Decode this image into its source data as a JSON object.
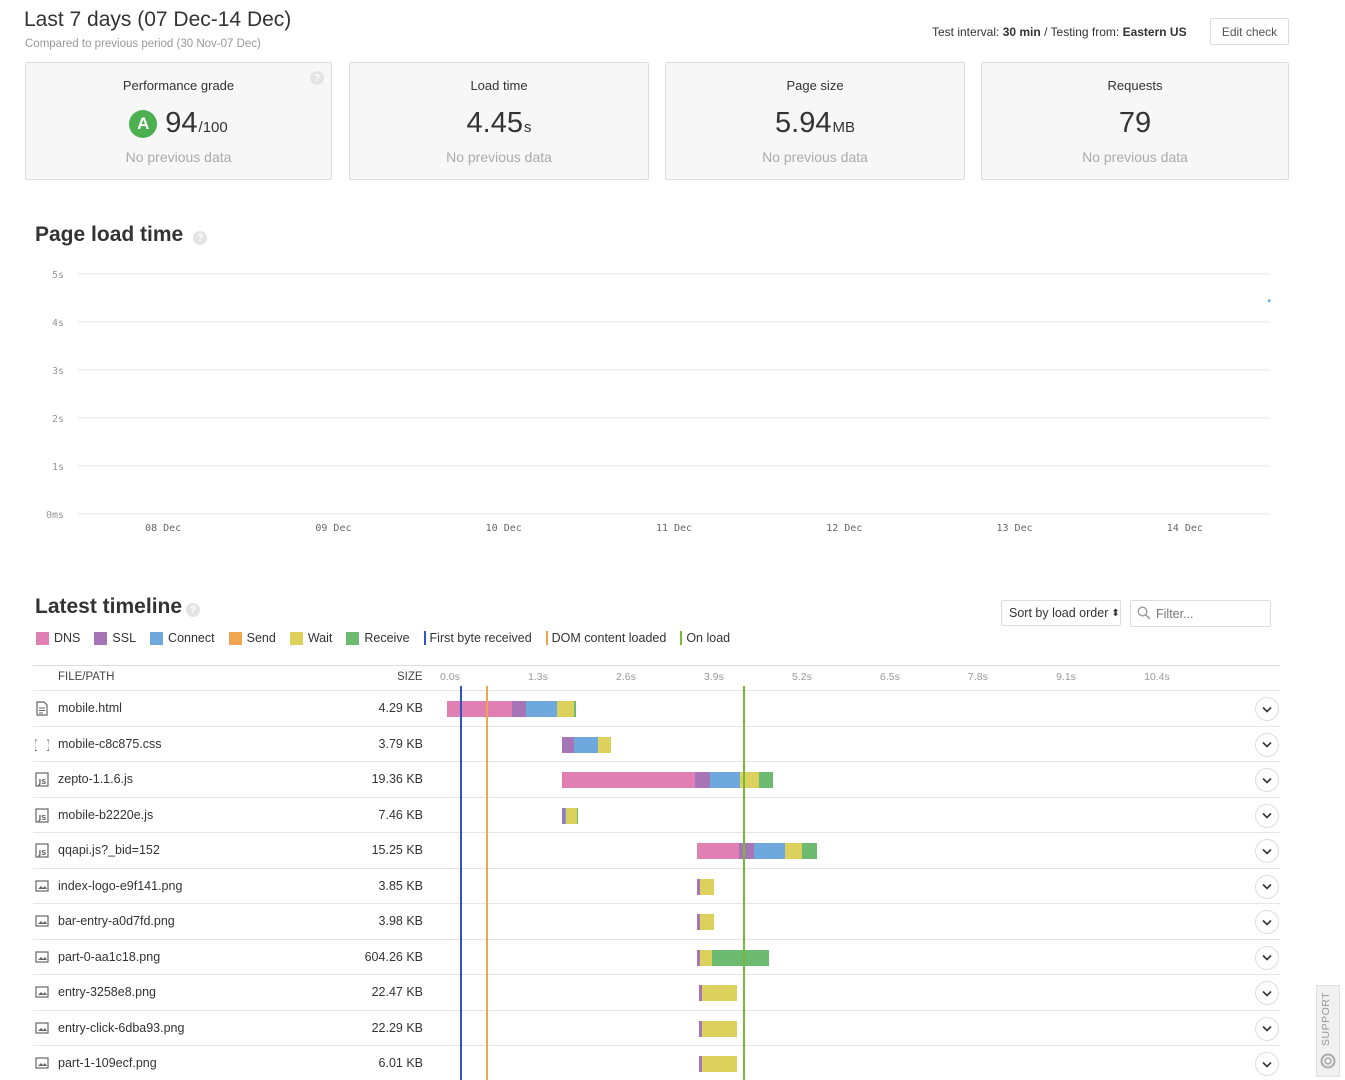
{
  "header": {
    "title": "Last 7 days (07 Dec-14 Dec)",
    "subtitle": "Compared to previous period (30 Nov-07 Dec)",
    "interval_label": "Test interval:",
    "interval_value": "30 min",
    "separator": "/",
    "testing_label": "Testing from:",
    "testing_value": "Eastern US",
    "edit_button": "Edit check"
  },
  "cards": [
    {
      "label": "Performance grade",
      "grade": "A",
      "value": "94",
      "unit": "/100",
      "foot": "No previous data"
    },
    {
      "label": "Load time",
      "value": "4.45",
      "unit": "s",
      "foot": "No previous data"
    },
    {
      "label": "Page size",
      "value": "5.94",
      "unit": "MB",
      "foot": "No previous data"
    },
    {
      "label": "Requests",
      "value": "79",
      "unit": "",
      "foot": "No previous data"
    }
  ],
  "help_glyph": "?",
  "load_section": {
    "title": "Page load time",
    "chart_data": {
      "type": "scatter",
      "title": "Page load time",
      "y_ticks": [
        "5s",
        "4s",
        "3s",
        "2s",
        "1s",
        "0ms"
      ],
      "x_ticks": [
        "08 Dec",
        "09 Dec",
        "10 Dec",
        "11 Dec",
        "12 Dec",
        "13 Dec",
        "14 Dec"
      ],
      "ylim": [
        0,
        5
      ],
      "series": [
        {
          "x": [
            "14 Dec"
          ],
          "values": [
            4.45
          ]
        }
      ],
      "point_color": "#5aa9e6"
    }
  },
  "timeline": {
    "title": "Latest timeline",
    "legend": [
      {
        "label": "DNS",
        "color": "#e07fb2",
        "kind": "swatch"
      },
      {
        "label": "SSL",
        "color": "#a575b5",
        "kind": "swatch"
      },
      {
        "label": "Connect",
        "color": "#6fa8dc",
        "kind": "swatch"
      },
      {
        "label": "Send",
        "color": "#f0a64f",
        "kind": "swatch"
      },
      {
        "label": "Wait",
        "color": "#dcd15c",
        "kind": "swatch"
      },
      {
        "label": "Receive",
        "color": "#6dbb71",
        "kind": "swatch"
      },
      {
        "label": "First byte received",
        "color": "#2f54c4",
        "kind": "line"
      },
      {
        "label": "DOM content loaded",
        "color": "#f0a64f",
        "kind": "line"
      },
      {
        "label": "On load",
        "color": "#78b93a",
        "kind": "line"
      }
    ],
    "sort_label": "Sort by load order",
    "sort_arrow": "⬍",
    "filter_placeholder": "Filter...",
    "col_file": "FILE/PATH",
    "col_size": "SIZE",
    "axis_ticks": [
      "0.0s",
      "1.3s",
      "2.6s",
      "3.9s",
      "5.2s",
      "6.5s",
      "7.8s",
      "9.1s",
      "10.4s"
    ],
    "axis_seconds": [
      0,
      1.3,
      2.6,
      3.9,
      5.2,
      6.5,
      7.8,
      9.1,
      10.4
    ],
    "markers_seconds": {
      "first_byte": 0.2,
      "dom_loaded": 0.59,
      "on_load": 4.39
    },
    "rows": [
      {
        "icon": "document-icon",
        "name": "mobile.html",
        "size": "4.29 KB",
        "start": 0.0,
        "phases": {
          "dns": 0.96,
          "ssl": 0.21,
          "connect": 0.46,
          "send": 0.0,
          "wait": 0.24,
          "receive": 0.03
        }
      },
      {
        "icon": "css-icon",
        "name": "mobile-c8c875.css",
        "size": "3.79 KB",
        "start": 1.7,
        "phases": {
          "dns": 0.0,
          "ssl": 0.18,
          "connect": 0.35,
          "send": 0.0,
          "wait": 0.19,
          "receive": 0.0
        }
      },
      {
        "icon": "js-icon",
        "name": "zepto-1.1.6.js",
        "size": "19.36 KB",
        "start": 1.7,
        "phases": {
          "dns": 1.97,
          "ssl": 0.22,
          "connect": 0.44,
          "send": 0.0,
          "wait": 0.28,
          "receive": 0.2
        }
      },
      {
        "icon": "js-icon",
        "name": "mobile-b2220e.js",
        "size": "7.46 KB",
        "start": 1.7,
        "phases": {
          "dns": 0.0,
          "ssl": 0.04,
          "connect": 0.02,
          "send": 0.0,
          "wait": 0.16,
          "receive": 0.02
        }
      },
      {
        "icon": "js-icon",
        "name": "qqapi.js?_bid=152",
        "size": "15.25 KB",
        "start": 3.7,
        "phases": {
          "dns": 0.62,
          "ssl": 0.22,
          "connect": 0.46,
          "send": 0.0,
          "wait": 0.24,
          "receive": 0.22
        }
      },
      {
        "icon": "image-icon",
        "name": "index-logo-e9f141.png",
        "size": "3.85 KB",
        "start": 3.7,
        "phases": {
          "dns": 0.0,
          "ssl": 0.04,
          "connect": 0.0,
          "send": 0.0,
          "wait": 0.21,
          "receive": 0.0
        }
      },
      {
        "icon": "image-icon",
        "name": "bar-entry-a0d7fd.png",
        "size": "3.98 KB",
        "start": 3.7,
        "phases": {
          "dns": 0.0,
          "ssl": 0.04,
          "connect": 0.0,
          "send": 0.0,
          "wait": 0.21,
          "receive": 0.0
        }
      },
      {
        "icon": "image-icon",
        "name": "part-0-aa1c18.png",
        "size": "604.26 KB",
        "start": 3.7,
        "phases": {
          "dns": 0.0,
          "ssl": 0.04,
          "connect": 0.0,
          "send": 0.0,
          "wait": 0.18,
          "receive": 0.83
        }
      },
      {
        "icon": "image-icon",
        "name": "entry-3258e8.png",
        "size": "22.47 KB",
        "start": 3.72,
        "phases": {
          "dns": 0.0,
          "ssl": 0.04,
          "connect": 0.0,
          "send": 0.0,
          "wait": 0.52,
          "receive": 0.0
        }
      },
      {
        "icon": "image-icon",
        "name": "entry-click-6dba93.png",
        "size": "22.29 KB",
        "start": 3.72,
        "phases": {
          "dns": 0.0,
          "ssl": 0.04,
          "connect": 0.0,
          "send": 0.0,
          "wait": 0.52,
          "receive": 0.0
        }
      },
      {
        "icon": "image-icon",
        "name": "part-1-109ecf.png",
        "size": "6.01 KB",
        "start": 3.72,
        "phases": {
          "dns": 0.0,
          "ssl": 0.04,
          "connect": 0.0,
          "send": 0.0,
          "wait": 0.52,
          "receive": 0.0
        }
      }
    ]
  },
  "support_label": "SUPPORT"
}
